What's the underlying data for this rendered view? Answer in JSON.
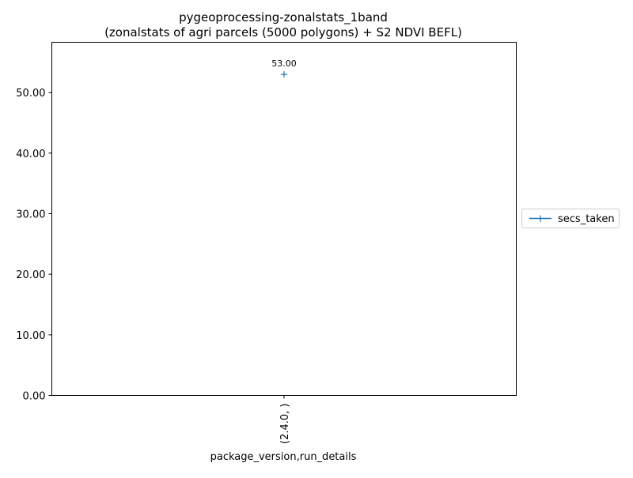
{
  "chart_data": {
    "type": "line",
    "title_line1": "pygeoprocessing-zonalstats_1band",
    "title_line2": "(zonalstats of agri parcels (5000 polygons) + S2 NDVI BEFL)",
    "xlabel": "package_version,run_details",
    "ylabel": "",
    "categories": [
      "(2.4.0, )"
    ],
    "series": [
      {
        "name": "secs_taken",
        "values": [
          53.0
        ],
        "labels": [
          "53.00"
        ],
        "color": "#1f77b4",
        "marker": "+"
      }
    ],
    "yticks": [
      "0.00",
      "10.00",
      "20.00",
      "30.00",
      "40.00",
      "50.00"
    ],
    "ylim": [
      0,
      58.3
    ],
    "grid": false,
    "legend_position": "right-center"
  }
}
